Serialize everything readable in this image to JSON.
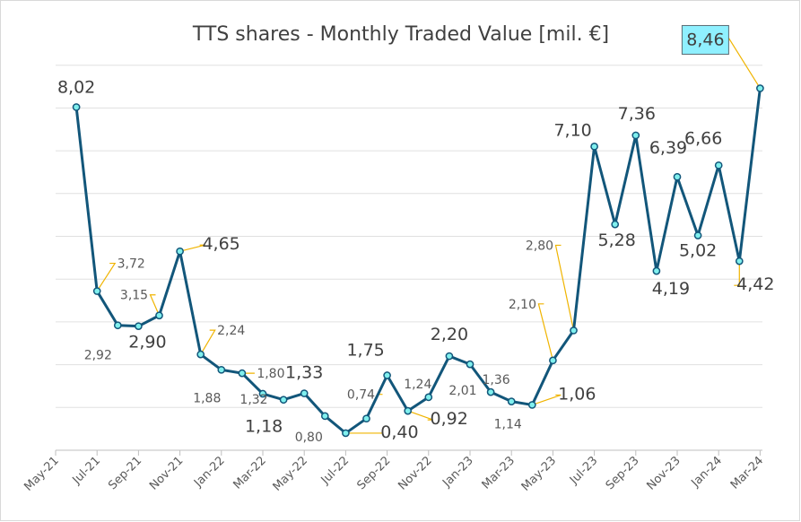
{
  "chart_data": {
    "type": "line",
    "title": "TTS shares - Monthly Traded Value [mil. €]",
    "xlabel": "",
    "ylabel": "",
    "ylim": [
      0,
      9
    ],
    "grid": true,
    "legend": "none",
    "colors": {
      "line": "#12567a",
      "marker_fill": "#80f0ee",
      "leader": "#f0b400",
      "highlight_box": "#8ff0ff"
    },
    "x_ticks": [
      "May-21",
      "Jul-21",
      "Sep-21",
      "Nov-21",
      "Jan-22",
      "Mar-22",
      "May-22",
      "Jul-22",
      "Sep-22",
      "Nov-22",
      "Jan-23",
      "Mar-23",
      "May-23",
      "Jul-23",
      "Sep-23",
      "Nov-23",
      "Jan-24",
      "Mar-24"
    ],
    "x": [
      "Jun-21",
      "Jul-21",
      "Aug-21",
      "Sep-21",
      "Oct-21",
      "Nov-21",
      "Dec-21",
      "Jan-22",
      "Feb-22",
      "Mar-22",
      "Apr-22",
      "May-22",
      "Jun-22",
      "Jul-22",
      "Aug-22",
      "Sep-22",
      "Oct-22",
      "Nov-22",
      "Dec-22",
      "Jan-23",
      "Feb-23",
      "Mar-23",
      "Apr-23",
      "May-23",
      "Jun-23",
      "Jul-23",
      "Aug-23",
      "Sep-23",
      "Oct-23",
      "Nov-23",
      "Dec-23",
      "Jan-24",
      "Feb-24",
      "Mar-24"
    ],
    "values": [
      8.02,
      3.72,
      2.92,
      2.9,
      3.15,
      4.65,
      2.24,
      1.88,
      1.8,
      1.32,
      1.18,
      1.33,
      0.8,
      0.4,
      0.74,
      1.75,
      0.92,
      1.24,
      2.2,
      2.01,
      1.36,
      1.14,
      1.06,
      2.1,
      2.8,
      7.1,
      5.28,
      7.36,
      4.19,
      6.39,
      5.02,
      6.66,
      4.42,
      8.46
    ],
    "labels": [
      "8,02",
      "3,72",
      "2,92",
      "2,90",
      "3,15",
      "4,65",
      "2,24",
      "1,88",
      "1,80",
      "1,32",
      "1,18",
      "1,33",
      "0,80",
      "0,40",
      "0,74",
      "1,75",
      "0,92",
      "1,24",
      "2,20",
      "2,01",
      "1,36",
      "1,14",
      "1,06",
      "2,10",
      "2,80",
      "7,10",
      "5,28",
      "7,36",
      "4,19",
      "6,39",
      "5,02",
      "6,66",
      "4,42",
      "8,46"
    ]
  }
}
